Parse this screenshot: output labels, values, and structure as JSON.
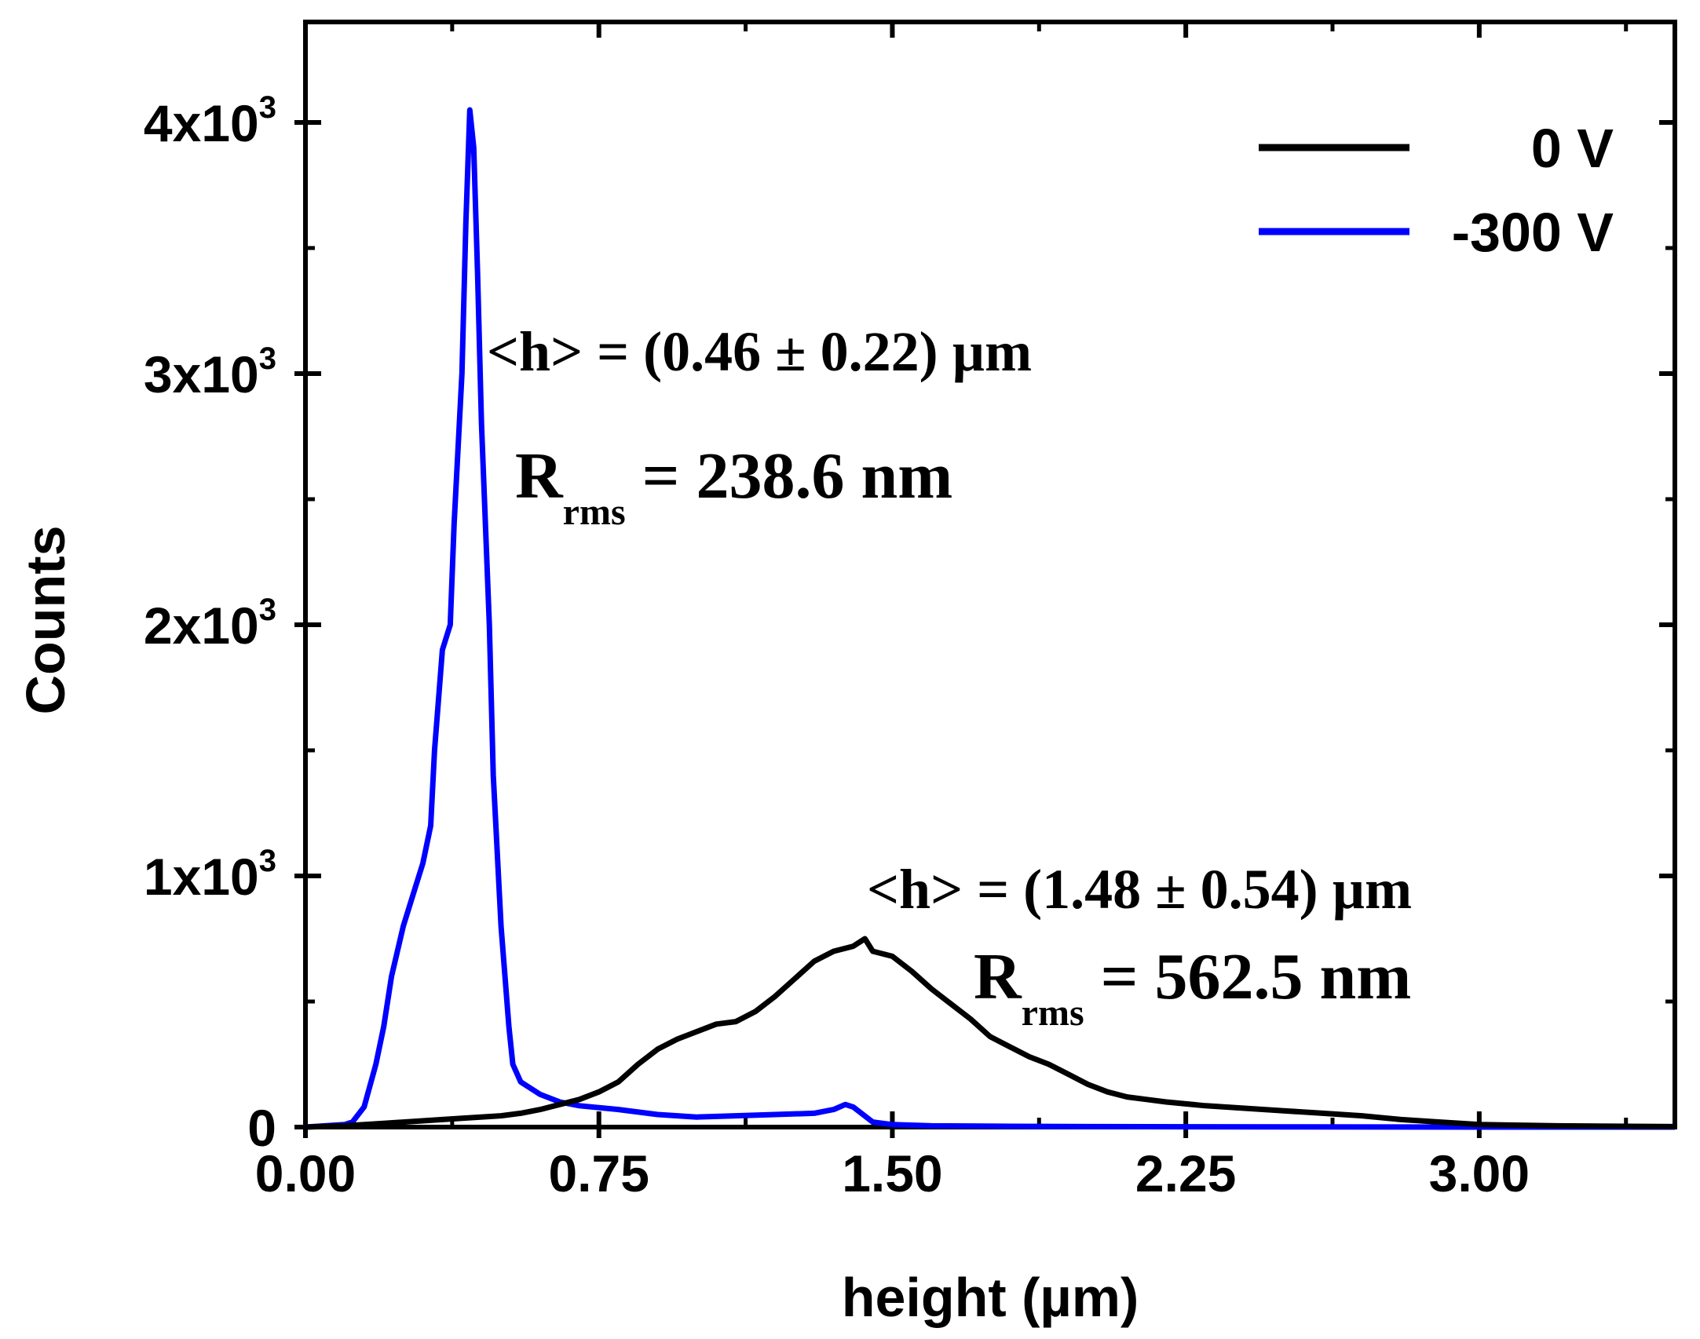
{
  "chart_data": {
    "type": "line",
    "xlabel": "height (µm)",
    "ylabel": "Counts",
    "xlim": [
      0,
      3.5
    ],
    "ylim": [
      0,
      4400
    ],
    "x_ticks": [
      {
        "value": 0.0,
        "label": "0.00"
      },
      {
        "value": 0.75,
        "label": "0.75"
      },
      {
        "value": 1.5,
        "label": "1.50"
      },
      {
        "value": 2.25,
        "label": "2.25"
      },
      {
        "value": 3.0,
        "label": "3.00"
      }
    ],
    "x_minor_ticks": [
      0.375,
      1.125,
      1.875,
      2.625,
      3.375
    ],
    "y_ticks": [
      {
        "value": 0,
        "label": "0",
        "base": "0",
        "exp": ""
      },
      {
        "value": 1000,
        "label": "1x10^3",
        "base": "1x10",
        "exp": "3"
      },
      {
        "value": 2000,
        "label": "2x10^3",
        "base": "2x10",
        "exp": "3"
      },
      {
        "value": 3000,
        "label": "3x10^3",
        "base": "3x10",
        "exp": "3"
      },
      {
        "value": 4000,
        "label": "4x10^3",
        "base": "4x10",
        "exp": "3"
      }
    ],
    "y_minor_ticks": [
      500,
      1500,
      2500,
      3500
    ],
    "legend": {
      "position": "top-right",
      "entries": [
        {
          "name": "0 V",
          "color": "#000000"
        },
        {
          "name": "-300 V",
          "color": "#0000ff"
        }
      ]
    },
    "series": [
      {
        "name": "-300 V",
        "color": "#0000ff",
        "x": [
          0.0,
          0.05,
          0.1,
          0.12,
          0.15,
          0.18,
          0.2,
          0.22,
          0.25,
          0.28,
          0.3,
          0.32,
          0.33,
          0.35,
          0.37,
          0.38,
          0.4,
          0.41,
          0.42,
          0.43,
          0.44,
          0.45,
          0.47,
          0.48,
          0.5,
          0.52,
          0.53,
          0.55,
          0.6,
          0.65,
          0.7,
          0.8,
          0.9,
          1.0,
          1.1,
          1.2,
          1.3,
          1.35,
          1.38,
          1.4,
          1.45,
          1.5,
          1.6,
          1.8,
          2.0,
          2.5,
          3.0,
          3.5
        ],
        "y": [
          0,
          5,
          10,
          20,
          80,
          250,
          400,
          600,
          800,
          950,
          1050,
          1200,
          1500,
          1900,
          2000,
          2400,
          3000,
          3600,
          4050,
          3900,
          3400,
          2800,
          2000,
          1400,
          800,
          400,
          250,
          180,
          130,
          100,
          85,
          70,
          50,
          40,
          45,
          50,
          55,
          70,
          90,
          80,
          20,
          10,
          5,
          3,
          2,
          1,
          0,
          0
        ]
      },
      {
        "name": "0 V",
        "color": "#000000",
        "x": [
          0.0,
          0.1,
          0.2,
          0.3,
          0.4,
          0.5,
          0.55,
          0.6,
          0.65,
          0.7,
          0.75,
          0.8,
          0.85,
          0.9,
          0.95,
          1.0,
          1.05,
          1.1,
          1.15,
          1.2,
          1.25,
          1.3,
          1.35,
          1.4,
          1.43,
          1.45,
          1.5,
          1.55,
          1.6,
          1.65,
          1.7,
          1.75,
          1.8,
          1.85,
          1.9,
          1.95,
          2.0,
          2.05,
          2.1,
          2.15,
          2.2,
          2.3,
          2.4,
          2.5,
          2.6,
          2.7,
          2.8,
          2.9,
          3.0,
          3.2,
          3.5
        ],
        "y": [
          0,
          5,
          15,
          25,
          35,
          45,
          55,
          70,
          90,
          110,
          140,
          180,
          250,
          310,
          350,
          380,
          410,
          420,
          460,
          520,
          590,
          660,
          700,
          720,
          750,
          700,
          680,
          620,
          550,
          490,
          430,
          360,
          320,
          280,
          250,
          210,
          170,
          140,
          120,
          110,
          100,
          85,
          75,
          65,
          55,
          45,
          30,
          20,
          10,
          5,
          2
        ]
      }
    ],
    "annotations": [
      {
        "id": "h1",
        "text_main": "<h> = (0.46 ± 0.22) µm"
      },
      {
        "id": "r1",
        "prefix": "R",
        "subscript": "rms",
        "suffix": " = 238.6 nm"
      },
      {
        "id": "h2",
        "text_main": "<h> = (1.48 ± 0.54) µm"
      },
      {
        "id": "r2",
        "prefix": "R",
        "subscript": "rms",
        "suffix": " = 562.5 nm"
      }
    ]
  }
}
